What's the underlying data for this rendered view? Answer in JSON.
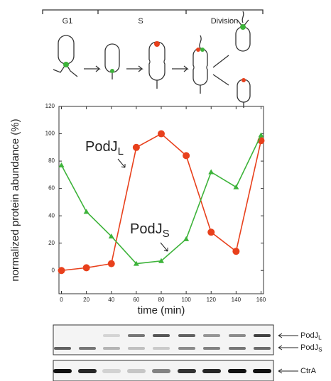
{
  "diagram": {
    "phases": [
      "G1",
      "S",
      "Division"
    ]
  },
  "chart_data": {
    "type": "line",
    "x": [
      0,
      20,
      40,
      60,
      80,
      100,
      120,
      140,
      160
    ],
    "series": [
      {
        "color": "#e8401c",
        "marker": "circle",
        "values": [
          0,
          2,
          5,
          90,
          100,
          84,
          28,
          14,
          95
        ]
      },
      {
        "color": "#3db33a",
        "marker": "triangle",
        "values": [
          77,
          43,
          25,
          5,
          7,
          23,
          72,
          61,
          99
        ]
      }
    ],
    "xlim": [
      -2,
      162
    ],
    "xticks": [
      0,
      20,
      40,
      60,
      80,
      100,
      120,
      140,
      160
    ],
    "ylim": [
      -17,
      120
    ],
    "yticks": [
      0,
      20,
      40,
      60,
      80,
      100,
      120
    ],
    "xlabel": "time (min)",
    "ylabel": "normalized protein abundance (%)",
    "annotations": [
      {
        "text": "PodJ",
        "sub": "L"
      },
      {
        "text": "PodJ",
        "sub": "S"
      }
    ]
  },
  "blot": {
    "labels": [
      {
        "text": "PodJ",
        "sub": "L"
      },
      {
        "text": "PodJ",
        "sub": "S"
      },
      {
        "text": "CtrA"
      }
    ]
  }
}
